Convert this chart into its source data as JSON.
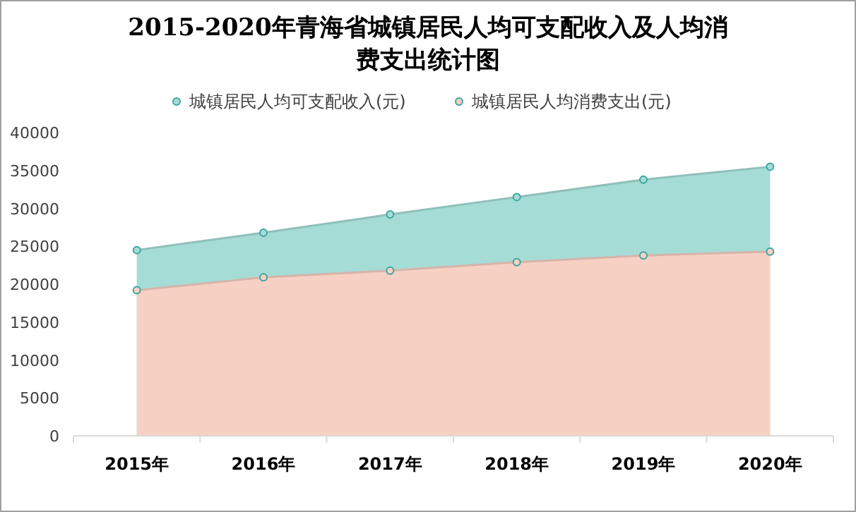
{
  "chart_data": {
    "type": "area",
    "title": "2015-2020年青海省城镇居民人均可支配收入及人均消费支出统计图",
    "categories": [
      "2015年",
      "2016年",
      "2017年",
      "2018年",
      "2019年",
      "2020年"
    ],
    "series": [
      {
        "name": "城镇居民人均可支配收入(元)",
        "color": "#a6dcd6",
        "values": [
          24500,
          26800,
          29200,
          31500,
          33800,
          35500
        ]
      },
      {
        "name": "城镇居民人均消费支出(元)",
        "color": "#f7d0c4",
        "values": [
          19200,
          20900,
          21800,
          22900,
          23800,
          24300
        ]
      }
    ],
    "ylim": [
      0,
      40000
    ],
    "yticks": [
      0,
      5000,
      10000,
      15000,
      20000,
      25000,
      30000,
      35000,
      40000
    ],
    "grid": false,
    "legend": "top",
    "marker": "circle"
  }
}
